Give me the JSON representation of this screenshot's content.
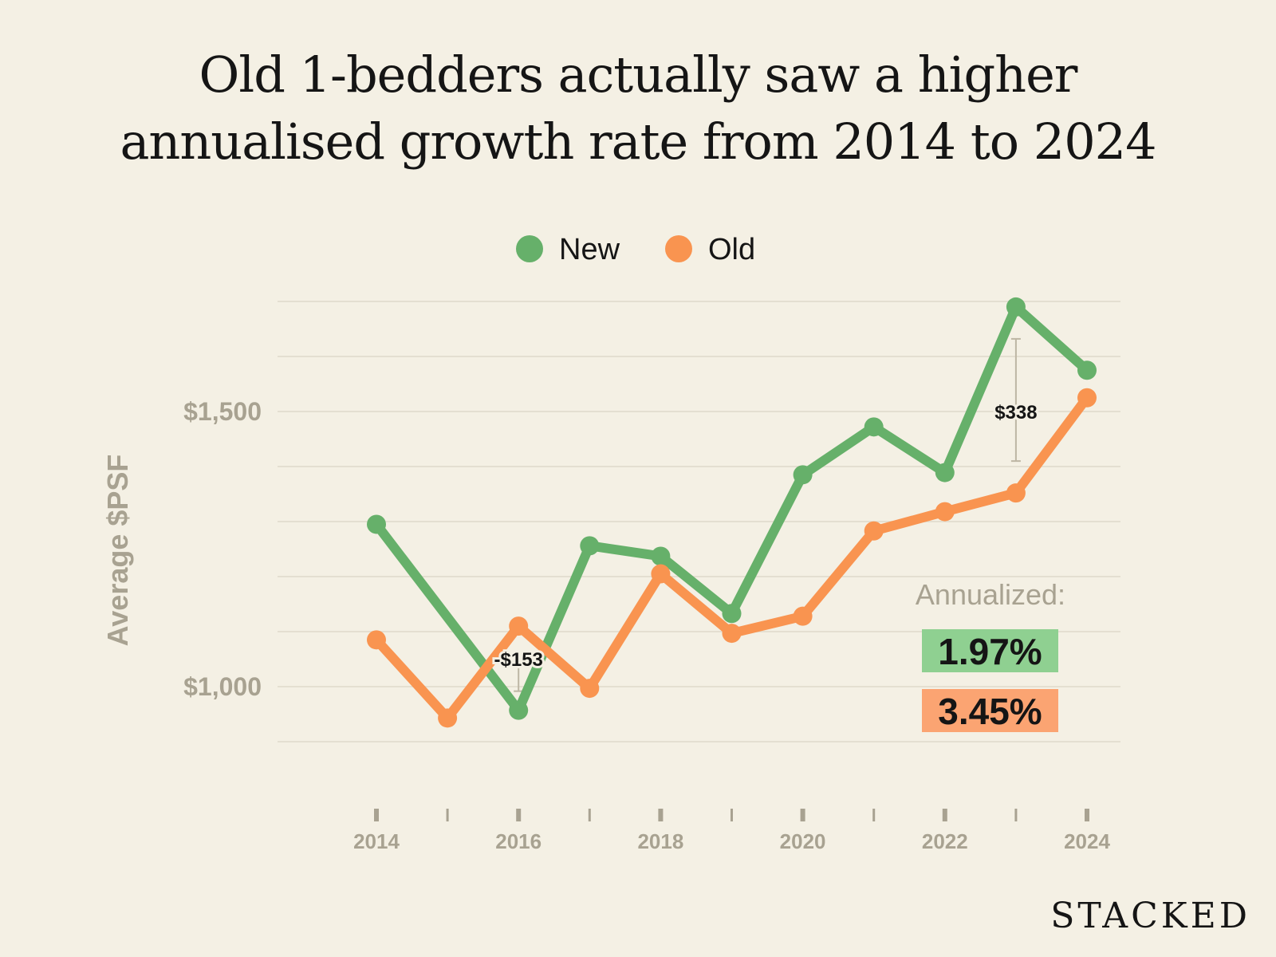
{
  "title_line1": "Old 1-bedders actually saw a higher",
  "title_line2": "annualised growth rate from 2014 to 2024",
  "brand": "STACKED",
  "chart_data": {
    "type": "line",
    "ylabel": "Average $PSF",
    "x": [
      2014,
      2015,
      2016,
      2017,
      2018,
      2019,
      2020,
      2021,
      2022,
      2023,
      2024
    ],
    "x_tick_labels": [
      "2014",
      "2016",
      "2018",
      "2020",
      "2022",
      "2024"
    ],
    "y_tick_labels": [
      {
        "value": 1000,
        "label": "$1,000"
      },
      {
        "value": 1500,
        "label": "$1,500"
      }
    ],
    "ylim": [
      800,
      1700
    ],
    "grid": true,
    "legend": "top-center",
    "series": [
      {
        "name": "New",
        "color": "#66b06a",
        "values": [
          1295,
          null,
          957,
          1256,
          1237,
          1133,
          1385,
          1472,
          1389,
          1690,
          1575
        ]
      },
      {
        "name": "Old",
        "color": "#f99450",
        "values": [
          1085,
          943,
          1110,
          997,
          1205,
          1097,
          1128,
          1283,
          1318,
          1352,
          1525
        ]
      }
    ],
    "annotations": [
      {
        "text": "-$153",
        "x": 2016
      },
      {
        "text": "$338",
        "x": 2023
      }
    ],
    "annualized_label": "Annualized:",
    "annualized": [
      {
        "series": "New",
        "text": "1.97%",
        "color": "#8fd091"
      },
      {
        "series": "Old",
        "text": "3.45%",
        "color": "#fba472"
      }
    ]
  }
}
